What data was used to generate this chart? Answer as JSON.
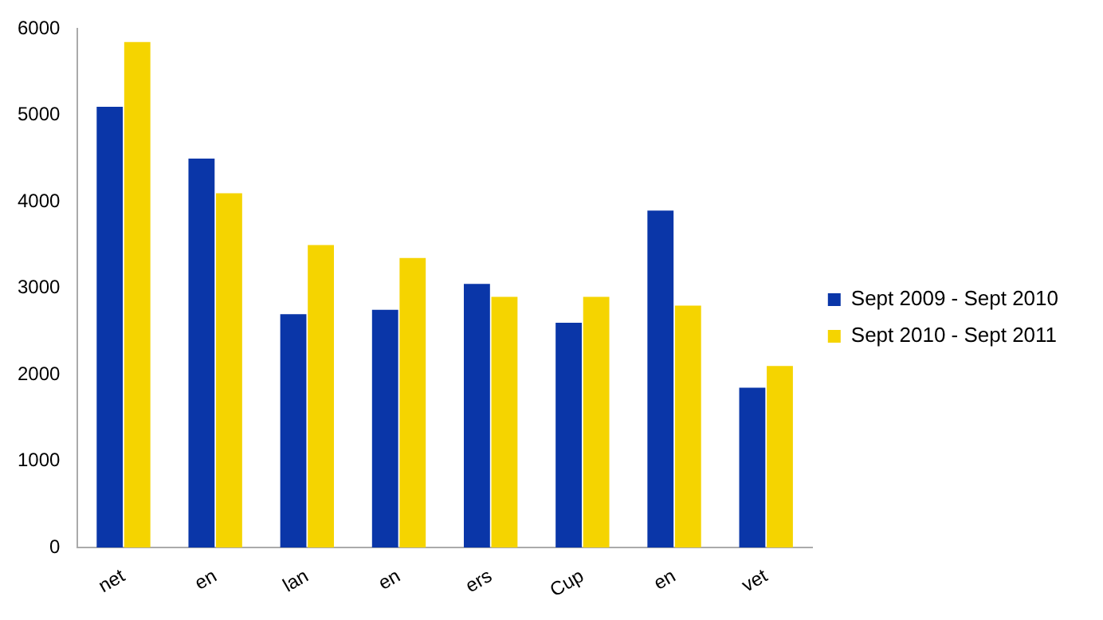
{
  "chart_data": {
    "type": "bar",
    "categories": [
      "net",
      "en",
      "lan",
      "en",
      "ers",
      "Cup",
      "en",
      "vet"
    ],
    "series": [
      {
        "name": "Sept 2009 - Sept 2010",
        "color": "#0a36a8",
        "values": [
          5100,
          4500,
          2700,
          2750,
          3050,
          2600,
          3900,
          1850
        ]
      },
      {
        "name": "Sept 2010 - Sept 2011",
        "color": "#f5d400",
        "values": [
          5850,
          4100,
          3500,
          3350,
          2900,
          2900,
          2800,
          2100
        ]
      }
    ],
    "ylim": [
      0,
      6000
    ],
    "yticks": [
      0,
      1000,
      2000,
      3000,
      4000,
      5000,
      6000
    ],
    "grid": false,
    "legend": "right"
  }
}
